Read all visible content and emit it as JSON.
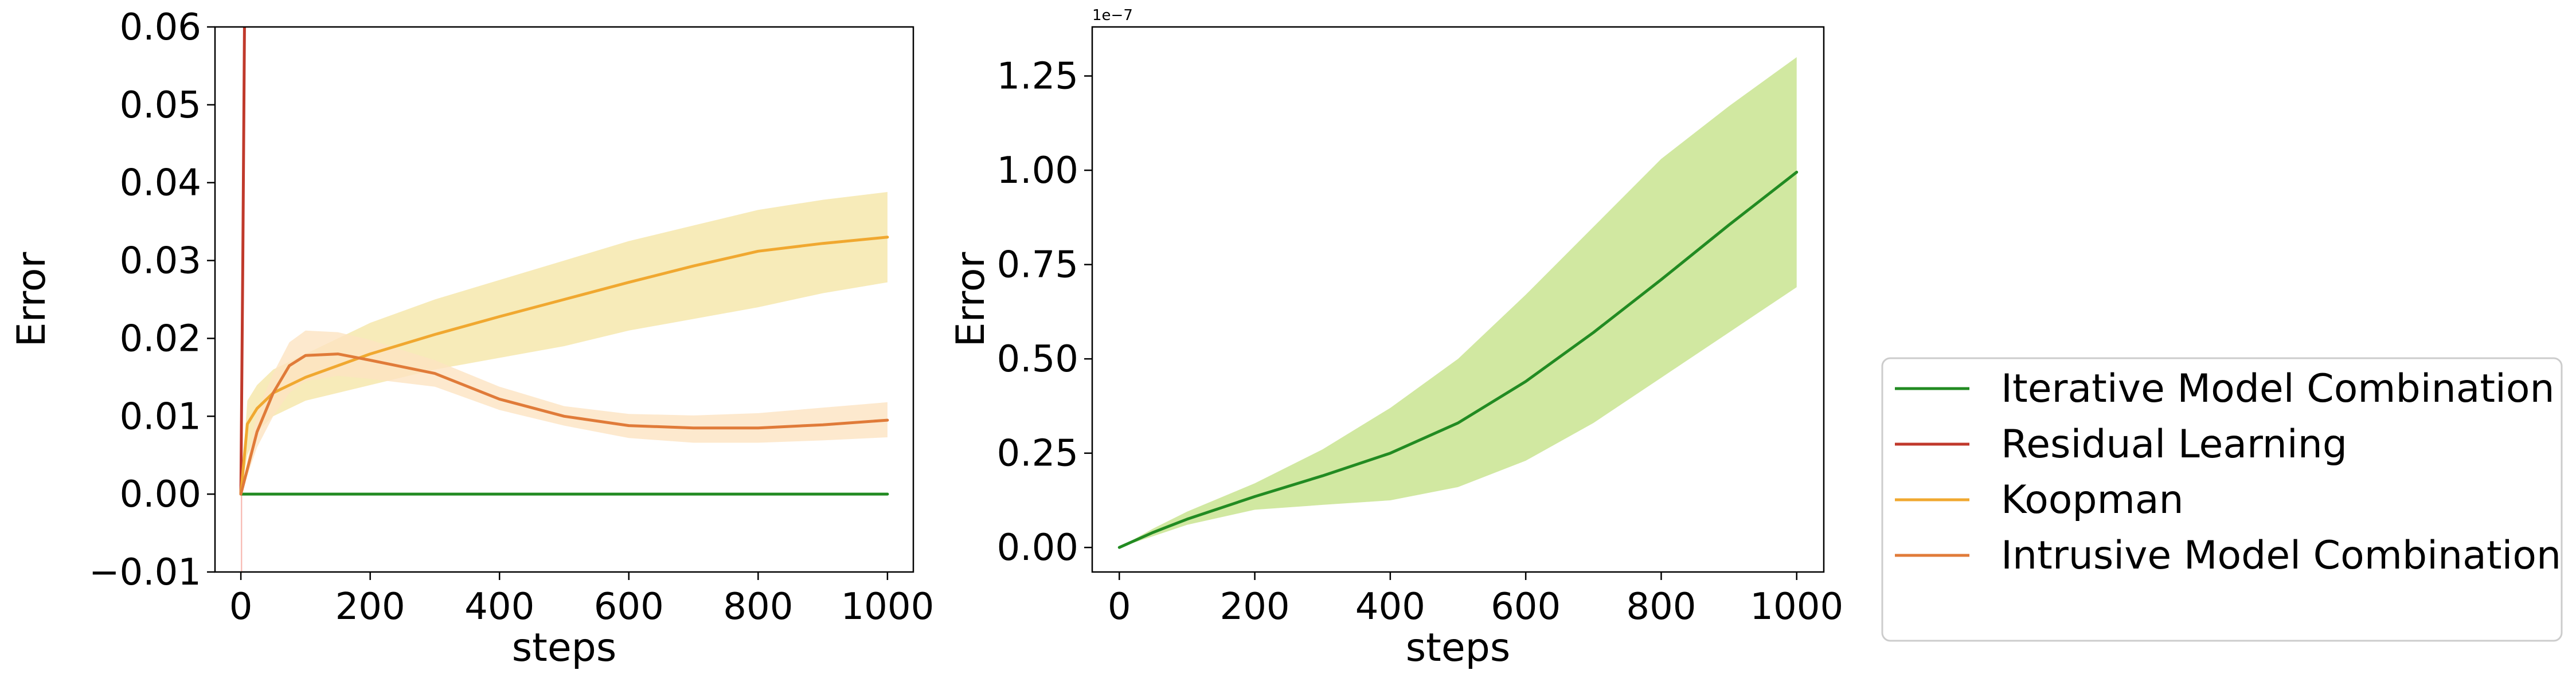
{
  "colors": {
    "imc": "#228b22",
    "residual": "#c0392b",
    "koopman": "#f0a830",
    "intrusive": "#e07b39",
    "koopman_band": "#f5e6a8",
    "intrusive_band": "#fde3c2",
    "imc_band": "#c5e28a",
    "residual_band": "#f5a9a0"
  },
  "chart_data": [
    {
      "type": "line",
      "xlabel": "steps",
      "ylabel": "Error",
      "xlim": [
        -40,
        1040
      ],
      "ylim": [
        -0.01,
        0.06
      ],
      "xticks": [
        0,
        200,
        400,
        600,
        800,
        1000
      ],
      "xtick_labels": [
        "0",
        "200",
        "400",
        "600",
        "800",
        "1000"
      ],
      "yticks": [
        -0.01,
        0.0,
        0.01,
        0.02,
        0.03,
        0.04,
        0.05,
        0.06
      ],
      "ytick_labels": [
        "−0.01",
        "0.00",
        "0.01",
        "0.02",
        "0.03",
        "0.04",
        "0.05",
        "0.06"
      ],
      "series": [
        {
          "name": "Iterative Model Combination",
          "color_key": "imc",
          "x": [
            0,
            1000
          ],
          "y": [
            0.0,
            0.0
          ]
        },
        {
          "name": "Residual Learning",
          "color_key": "residual",
          "x": [
            0,
            3,
            6
          ],
          "y": [
            0.0,
            0.03,
            0.065
          ],
          "band_color_key": "residual_band",
          "band": {
            "x": [
              0,
              1,
              2
            ],
            "lower": [
              -0.01,
              -0.01,
              -0.01
            ],
            "upper": [
              0.0,
              0.0,
              0.0
            ]
          }
        },
        {
          "name": "Koopman",
          "color_key": "koopman",
          "x": [
            0,
            10,
            25,
            50,
            100,
            200,
            300,
            400,
            500,
            600,
            700,
            800,
            900,
            1000
          ],
          "y": [
            0.0,
            0.009,
            0.011,
            0.013,
            0.015,
            0.018,
            0.0205,
            0.0228,
            0.025,
            0.0272,
            0.0293,
            0.0312,
            0.0322,
            0.033
          ],
          "band_color_key": "koopman_band",
          "band": {
            "x": [
              0,
              10,
              25,
              50,
              100,
              200,
              300,
              400,
              500,
              600,
              700,
              800,
              900,
              1000
            ],
            "lower": [
              0.0,
              0.005,
              0.008,
              0.01,
              0.012,
              0.014,
              0.016,
              0.0175,
              0.019,
              0.021,
              0.0225,
              0.024,
              0.0258,
              0.0272
            ],
            "upper": [
              0.0,
              0.012,
              0.014,
              0.016,
              0.018,
              0.022,
              0.025,
              0.0275,
              0.03,
              0.0325,
              0.0345,
              0.0365,
              0.0378,
              0.0388
            ]
          }
        },
        {
          "name": "Intrusive Model Combination",
          "color_key": "intrusive",
          "x": [
            0,
            25,
            50,
            75,
            100,
            150,
            200,
            300,
            400,
            500,
            600,
            700,
            800,
            900,
            1000
          ],
          "y": [
            0.0,
            0.008,
            0.013,
            0.0165,
            0.0178,
            0.018,
            0.0172,
            0.0155,
            0.0122,
            0.01,
            0.0088,
            0.0085,
            0.0085,
            0.0089,
            0.0095
          ],
          "band_color_key": "intrusive_band",
          "band": {
            "x": [
              0,
              25,
              50,
              75,
              100,
              150,
              200,
              300,
              400,
              500,
              600,
              700,
              800,
              900,
              1000
            ],
            "lower": [
              0.0,
              0.006,
              0.01,
              0.013,
              0.0145,
              0.0152,
              0.0148,
              0.0138,
              0.0108,
              0.0088,
              0.0072,
              0.0066,
              0.0066,
              0.0069,
              0.0073
            ],
            "upper": [
              0.0,
              0.0105,
              0.0155,
              0.0195,
              0.021,
              0.0208,
              0.0198,
              0.0172,
              0.0138,
              0.0113,
              0.0103,
              0.0101,
              0.0104,
              0.0111,
              0.0118
            ]
          }
        }
      ]
    },
    {
      "type": "line",
      "xlabel": "steps",
      "ylabel": "Error",
      "offset_text": "1e−7",
      "xlim": [
        -40,
        1040
      ],
      "ylim": [
        -0.065,
        1.38
      ],
      "xticks": [
        0,
        200,
        400,
        600,
        800,
        1000
      ],
      "xtick_labels": [
        "0",
        "200",
        "400",
        "600",
        "800",
        "1000"
      ],
      "yticks": [
        0.0,
        0.25,
        0.5,
        0.75,
        1.0,
        1.25
      ],
      "ytick_labels": [
        "0.00",
        "0.25",
        "0.50",
        "0.75",
        "1.00",
        "1.25"
      ],
      "series": [
        {
          "name": "Iterative Model Combination",
          "color_key": "imc",
          "x": [
            0,
            50,
            100,
            200,
            300,
            400,
            500,
            600,
            700,
            800,
            900,
            1000
          ],
          "y": [
            0.0,
            0.04,
            0.075,
            0.135,
            0.19,
            0.25,
            0.33,
            0.44,
            0.57,
            0.71,
            0.855,
            0.995
          ],
          "band_color_key": "imc_band",
          "band": {
            "x": [
              0,
              50,
              100,
              200,
              300,
              400,
              500,
              600,
              700,
              800,
              900,
              1000
            ],
            "lower": [
              0.0,
              0.03,
              0.06,
              0.1,
              0.113,
              0.125,
              0.16,
              0.23,
              0.33,
              0.45,
              0.57,
              0.69
            ],
            "upper": [
              0.0,
              0.05,
              0.095,
              0.17,
              0.26,
              0.37,
              0.5,
              0.67,
              0.85,
              1.03,
              1.17,
              1.3
            ]
          }
        }
      ]
    }
  ],
  "legend": {
    "items": [
      {
        "label": "Iterative Model Combination",
        "color_key": "imc"
      },
      {
        "label": "Residual Learning",
        "color_key": "residual"
      },
      {
        "label": "Koopman",
        "color_key": "koopman"
      },
      {
        "label": "Intrusive Model Combination",
        "color_key": "intrusive"
      }
    ]
  }
}
